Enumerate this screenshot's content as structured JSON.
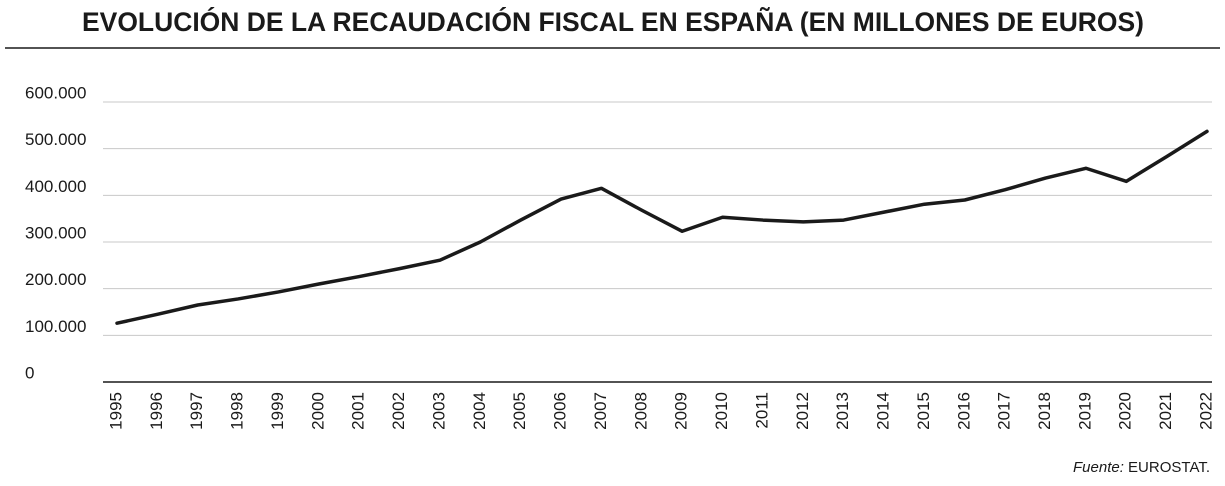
{
  "chart_data": {
    "type": "line",
    "title": "EVOLUCIÓN DE LA RECAUDACIÓN FISCAL EN ESPAÑA (EN MILLONES DE EUROS)",
    "source_label": "Fuente:",
    "source": "EUROSTAT.",
    "categories": [
      "1995",
      "1996",
      "1997",
      "1998",
      "1999",
      "2000",
      "2001",
      "2002",
      "2003",
      "2004",
      "2005",
      "2006",
      "2007",
      "2008",
      "2009",
      "2010",
      "2011",
      "2012",
      "2013",
      "2014",
      "2015",
      "2016",
      "2017",
      "2018",
      "2019",
      "2020",
      "2021",
      "2022"
    ],
    "series": [
      {
        "color": "#1a1a1a",
        "values": [
          126000,
          145000,
          165000,
          178000,
          193000,
          210000,
          226000,
          243000,
          261000,
          300000,
          347000,
          392000,
          415000,
          368000,
          323000,
          353000,
          347000,
          343000,
          347000,
          364000,
          381000,
          390000,
          412000,
          437000,
          458000,
          430000,
          483000,
          537000
        ]
      }
    ],
    "ylim": [
      0,
      600000
    ],
    "yticks": [
      0,
      {
        "value": 100000,
        "label": "100.000"
      },
      {
        "value": 200000,
        "label": "200.000"
      },
      {
        "value": 300000,
        "label": "300.000"
      },
      {
        "value": 400000,
        "label": "400.000"
      },
      {
        "value": 500000,
        "label": "500.000"
      },
      {
        "value": 600000,
        "label": "600.000"
      }
    ],
    "grid": true
  }
}
